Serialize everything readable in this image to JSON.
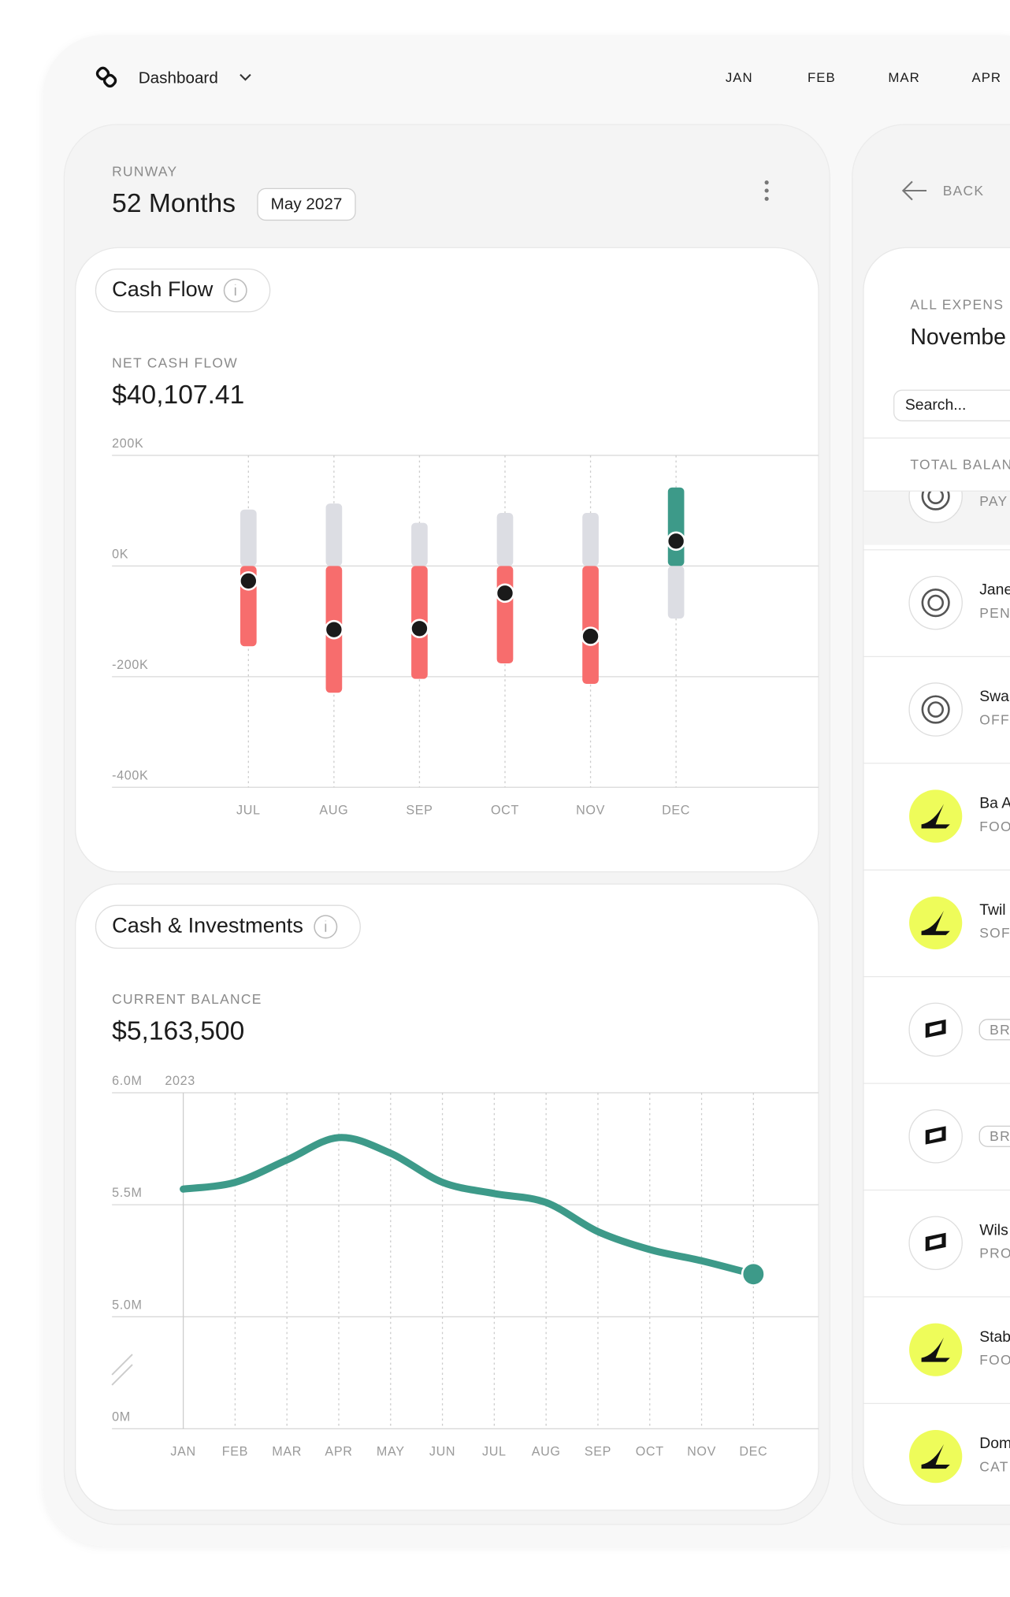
{
  "header": {
    "title": "Dashboard",
    "months": [
      "JAN",
      "FEB",
      "MAR",
      "APR"
    ]
  },
  "runway": {
    "label": "RUNWAY",
    "value": "52 Months",
    "date": "May 2027"
  },
  "chart_data": [
    {
      "type": "floating_bar",
      "title": "Cash Flow",
      "metric_label": "NET CASH FLOW",
      "metric_value": "$40,107.41",
      "categories": [
        "JUL",
        "AUG",
        "SEP",
        "OCT",
        "NOV",
        "DEC"
      ],
      "series": [
        {
          "color": "#3d9a89",
          "values": [
            102000,
            113000,
            78000,
            96000,
            96000,
            142000
          ]
        },
        {
          "color": "#f76d6d",
          "values": [
            -145000,
            -229000,
            -204000,
            -176000,
            -213000,
            -95000
          ]
        },
        {
          "color": "#1a1a1a",
          "values": [
            -27000,
            -115000,
            -113000,
            -49000,
            -127000,
            45000
          ]
        }
      ],
      "neutral_color": "#dcdde3",
      "ylim": [
        -400000,
        200000
      ],
      "yticks": [
        {
          "value": 200000,
          "label": "200K"
        },
        {
          "value": 0,
          "label": "0K"
        },
        {
          "value": -200000,
          "label": "-200K"
        },
        {
          "value": -400000,
          "label": "-400K"
        }
      ],
      "grid": true
    },
    {
      "type": "line",
      "title": "Cash & Investments",
      "metric_label": "CURRENT BALANCE",
      "metric_value": "$5,163,500",
      "annotation": "2023",
      "categories": [
        "JAN",
        "FEB",
        "MAR",
        "APR",
        "MAY",
        "JUN",
        "JUL",
        "AUG",
        "SEP",
        "OCT",
        "NOV",
        "DEC"
      ],
      "series": [
        {
          "color": "#3d9a89",
          "values": [
            5570000,
            5600000,
            5700000,
            5800000,
            5730000,
            5600000,
            5550000,
            5510000,
            5380000,
            5300000,
            5250000,
            5190000
          ]
        }
      ],
      "ylim": [
        5000000,
        6000000
      ],
      "yticks": [
        {
          "value": 6000000,
          "label": "6.0M"
        },
        {
          "value": 5500000,
          "label": "5.5M"
        },
        {
          "value": 5000000,
          "label": "5.0M"
        },
        {
          "value": 0,
          "label": "0M"
        }
      ],
      "axis_break": true,
      "grid": true
    }
  ],
  "side_panel": {
    "back": "BACK",
    "label": "ALL EXPENS",
    "month": "Novembe",
    "search": "Search...",
    "total": "TOTAL BALANC",
    "rows": [
      {
        "category": "PAY"
      },
      {
        "name": "Jane",
        "category": "PEN"
      },
      {
        "name": "Swa",
        "category": "OFFI"
      },
      {
        "name": "Ba A",
        "category": "FOO"
      },
      {
        "name": "Twil",
        "category": "SOF"
      },
      {
        "category": "BRI"
      },
      {
        "category": "BRI"
      },
      {
        "name": "Wils",
        "category": "PRO"
      },
      {
        "name": "Stab",
        "category": "FOO"
      },
      {
        "name": "Dom",
        "category": "CAT"
      }
    ]
  }
}
